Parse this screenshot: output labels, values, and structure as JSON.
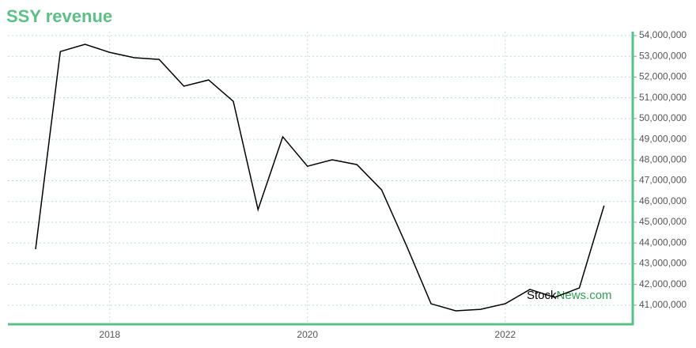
{
  "chart_data": {
    "type": "line",
    "title": "SSY revenue",
    "x": [
      2017.25,
      2017.5,
      2017.75,
      2018.0,
      2018.25,
      2018.5,
      2018.75,
      2019.0,
      2019.25,
      2019.5,
      2019.75,
      2020.0,
      2020.25,
      2020.5,
      2020.75,
      2021.0,
      2021.25,
      2021.5,
      2021.75,
      2022.0,
      2022.25,
      2022.5,
      2022.75,
      2023.0
    ],
    "series": [
      {
        "name": "SSY revenue",
        "color": "#000000",
        "values": [
          43700000,
          53230000,
          53580000,
          53190000,
          52930000,
          52850000,
          51560000,
          51860000,
          50830000,
          45610000,
          49120000,
          47700000,
          48010000,
          47780000,
          46560000,
          43890000,
          41070000,
          40730000,
          40800000,
          41070000,
          41760000,
          41380000,
          41830000,
          45800000
        ]
      }
    ],
    "xlim": [
      2016.97,
      2023.29
    ],
    "xticks": [
      2018,
      2020,
      2022
    ],
    "ylim": [
      40080000,
      54190000
    ],
    "yticks": [
      {
        "value": 41000000,
        "label": "41,000,000"
      },
      {
        "value": 42000000,
        "label": "42,000,000"
      },
      {
        "value": 43000000,
        "label": "43,000,000"
      },
      {
        "value": 44000000,
        "label": "44,000,000"
      },
      {
        "value": 45000000,
        "label": "45,000,000"
      },
      {
        "value": 46000000,
        "label": "46,000,000"
      },
      {
        "value": 47000000,
        "label": "47,000,000"
      },
      {
        "value": 48000000,
        "label": "48,000,000"
      },
      {
        "value": 49000000,
        "label": "49,000,000"
      },
      {
        "value": 50000000,
        "label": "50,000,000"
      },
      {
        "value": 51000000,
        "label": "51,000,000"
      },
      {
        "value": 52000000,
        "label": "52,000,000"
      },
      {
        "value": 53000000,
        "label": "53,000,000"
      },
      {
        "value": 54000000,
        "label": "54,000,000"
      }
    ],
    "grid": true,
    "axis_color": "#5cbf84",
    "watermark": {
      "first": "Stock",
      "second": "News.com"
    }
  }
}
